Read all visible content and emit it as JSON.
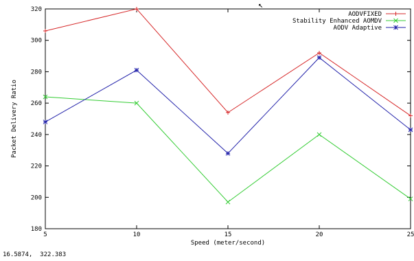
{
  "chart_data": {
    "type": "line",
    "title": "",
    "xlabel": "Speed (meter/second)",
    "ylabel": "Packet Delivery Ratio",
    "x": [
      5,
      10,
      15,
      20,
      25
    ],
    "xlim": [
      5,
      25
    ],
    "ylim": [
      180,
      320
    ],
    "xticks": [
      5,
      10,
      15,
      20,
      25
    ],
    "yticks": [
      180,
      200,
      220,
      240,
      260,
      280,
      300,
      320
    ],
    "grid": false,
    "legend_position": "top-right",
    "series": [
      {
        "name": "AODVFIXED",
        "color": "#d62728",
        "marker": "+",
        "values": [
          306,
          320,
          254,
          292,
          252
        ]
      },
      {
        "name": "Stability Enhanced AOMDV",
        "color": "#33cc33",
        "marker": "x",
        "values": [
          264,
          260,
          197,
          240,
          199
        ]
      },
      {
        "name": "AODV Adaptive",
        "color": "#2222aa",
        "marker": "*",
        "values": [
          248,
          281,
          228,
          289,
          243
        ]
      }
    ]
  },
  "status": {
    "coordinates": "16.5874,  322.383"
  }
}
